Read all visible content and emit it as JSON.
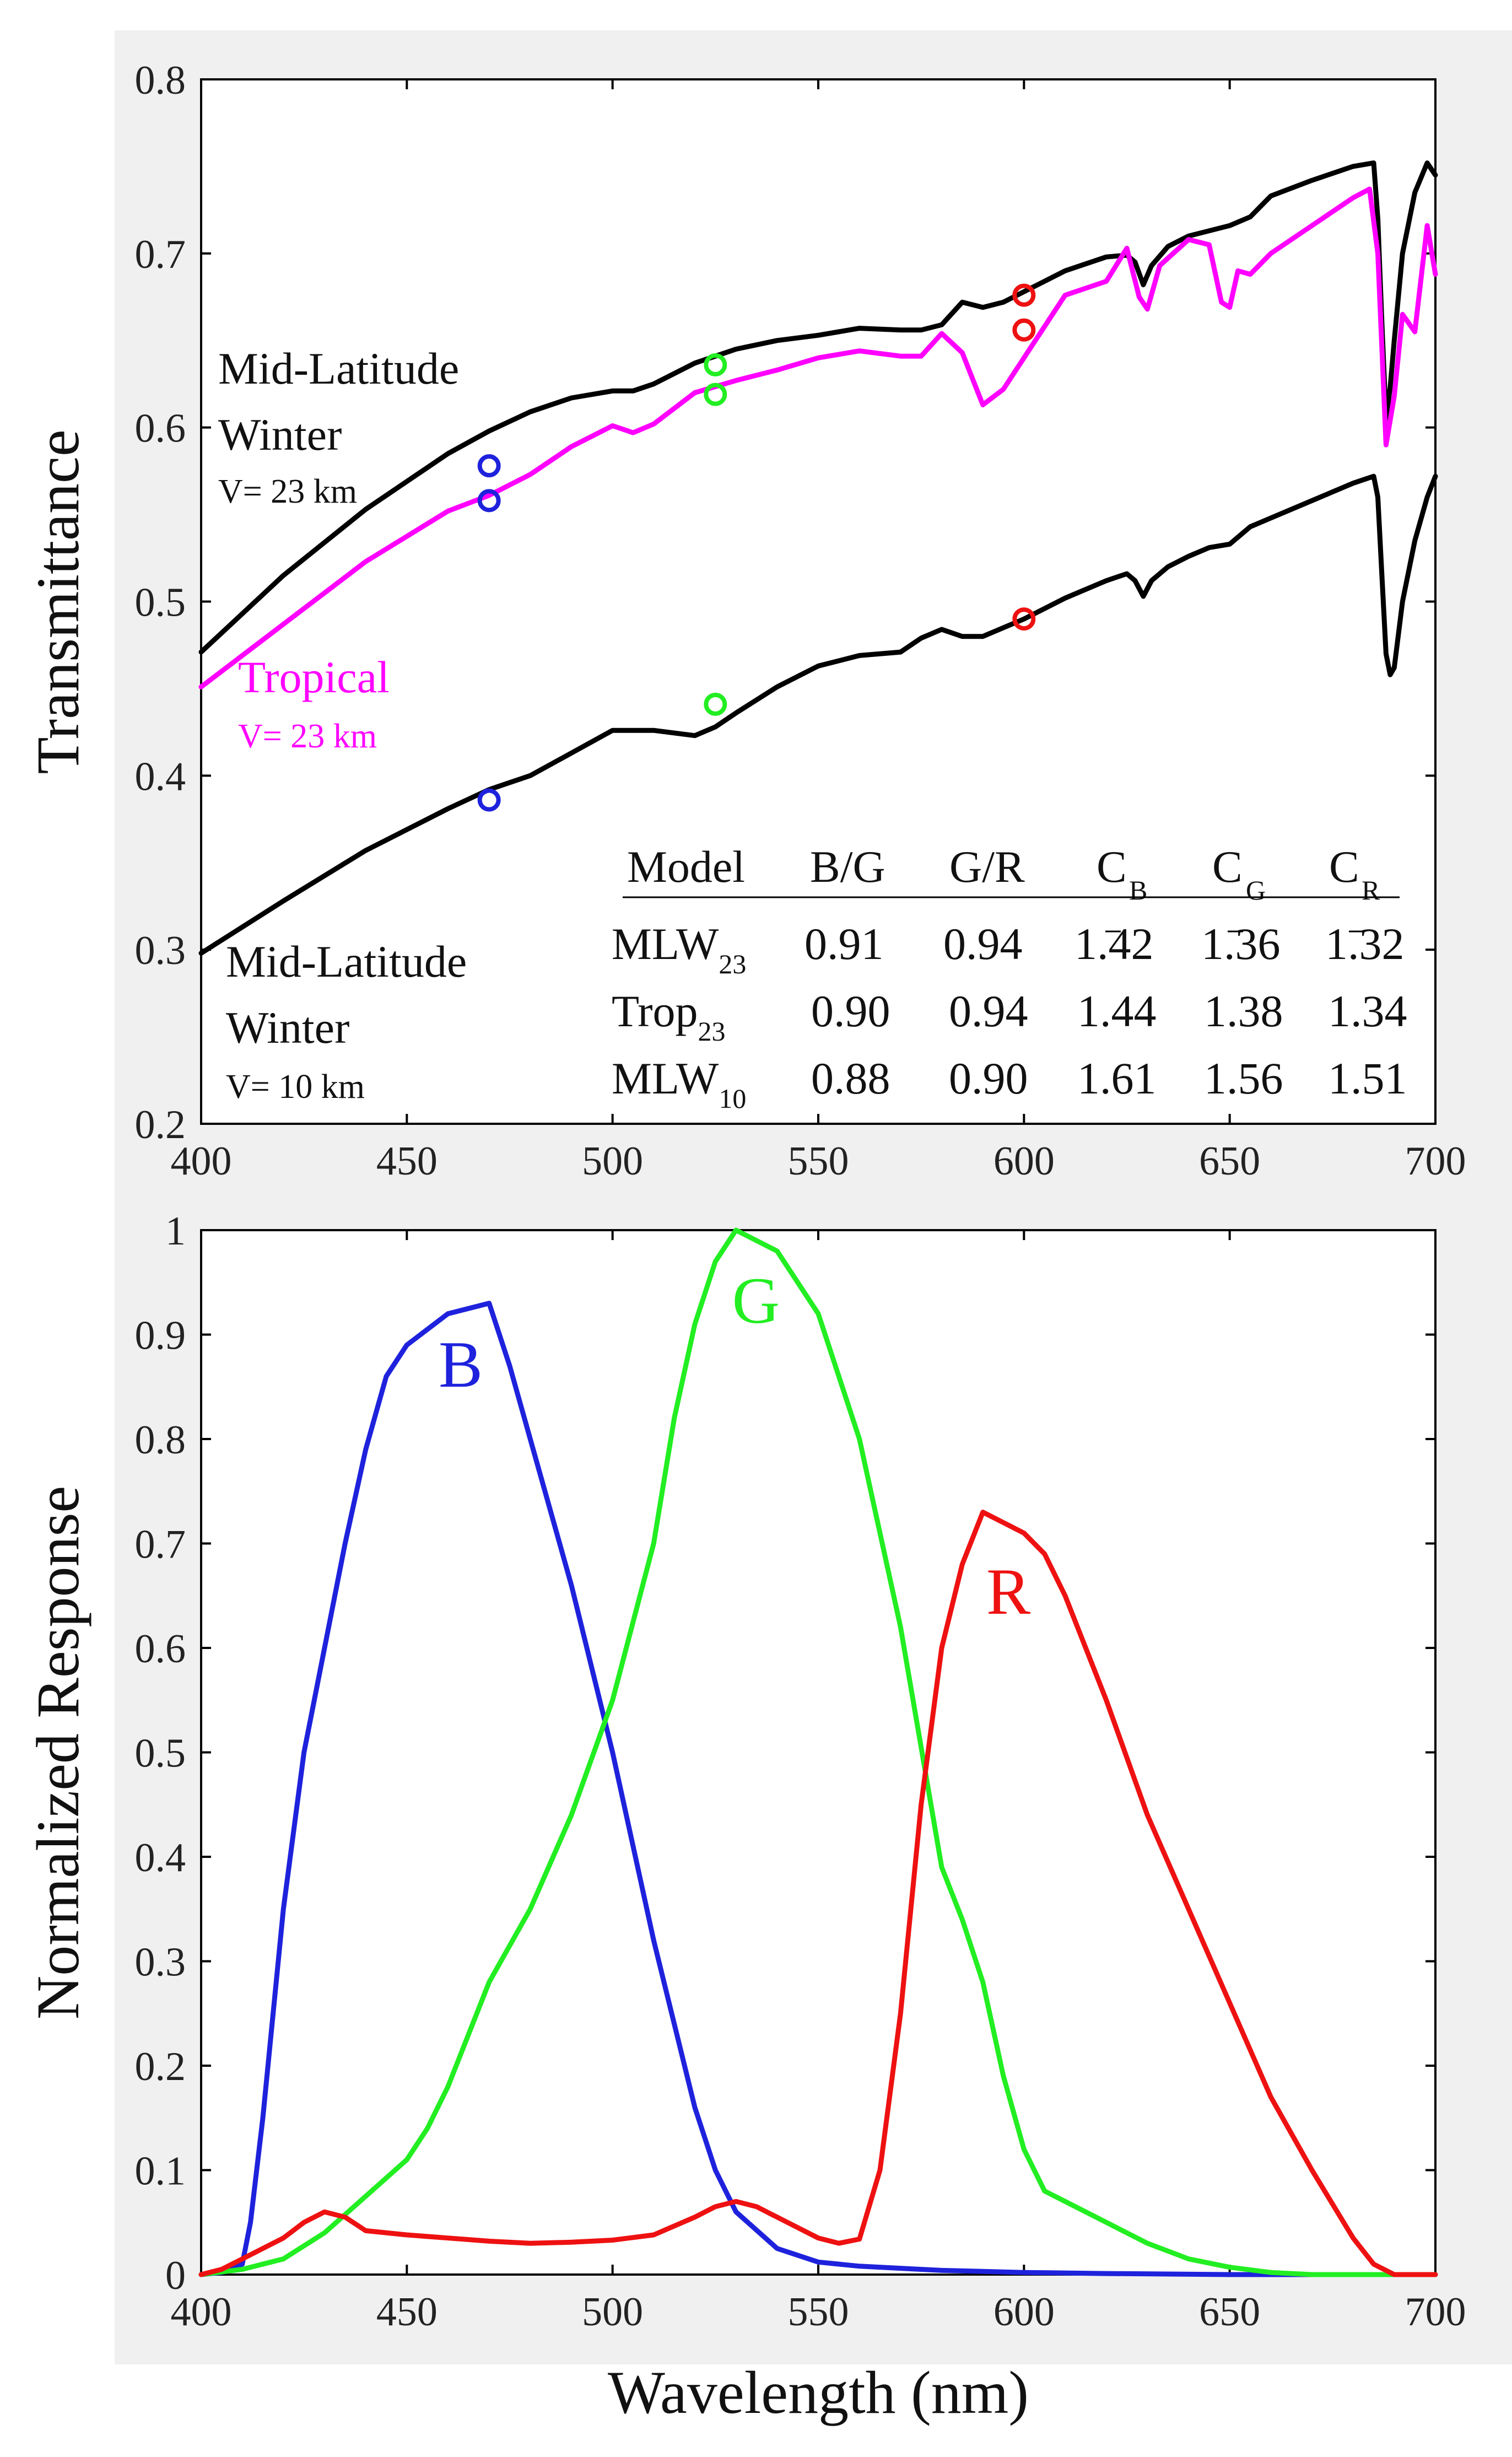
{
  "colors": {
    "black": "#000000",
    "magenta": "#ff00ff",
    "blue": "#1e22dc",
    "green": "#22ee22",
    "red": "#ee1111",
    "panel_bg": "#f0f0f0"
  },
  "chart_data": [
    {
      "type": "line",
      "ylabel": "Transmittance",
      "xlabel": "",
      "xlim": [
        400,
        700
      ],
      "ylim": [
        0.2,
        0.8
      ],
      "xticks": [
        400,
        450,
        500,
        550,
        600,
        650,
        700
      ],
      "xtick_labels": [
        "400",
        "450",
        "500",
        "550",
        "600",
        "650",
        "700"
      ],
      "yticks": [
        0.2,
        0.3,
        0.4,
        0.5,
        0.6,
        0.7,
        0.8
      ],
      "ytick_labels": [
        "0.2",
        "0.3",
        "0.4",
        "0.5",
        "0.6",
        "0.7",
        "0.8"
      ],
      "series": [
        {
          "name": "Mid-Latitude Winter V= 23 km",
          "color": "black",
          "x": [
            400,
            420,
            440,
            460,
            470,
            480,
            490,
            500,
            505,
            510,
            520,
            525,
            530,
            540,
            550,
            560,
            570,
            575,
            580,
            585,
            590,
            595,
            600,
            610,
            620,
            625,
            627,
            629,
            631,
            635,
            640,
            645,
            650,
            655,
            660,
            670,
            680,
            685,
            686,
            687,
            688,
            689,
            690,
            692,
            695,
            698,
            700
          ],
          "y": [
            0.471,
            0.515,
            0.553,
            0.585,
            0.598,
            0.609,
            0.617,
            0.621,
            0.621,
            0.625,
            0.637,
            0.641,
            0.645,
            0.65,
            0.653,
            0.657,
            0.656,
            0.656,
            0.659,
            0.672,
            0.669,
            0.672,
            0.678,
            0.69,
            0.698,
            0.699,
            0.695,
            0.682,
            0.693,
            0.704,
            0.71,
            0.713,
            0.716,
            0.721,
            0.733,
            0.742,
            0.75,
            0.752,
            0.72,
            0.66,
            0.605,
            0.623,
            0.65,
            0.7,
            0.735,
            0.752,
            0.745
          ]
        },
        {
          "name": "Tropical V= 23 km",
          "color": "magenta",
          "x": [
            400,
            420,
            440,
            460,
            470,
            480,
            490,
            500,
            505,
            510,
            520,
            530,
            540,
            550,
            560,
            570,
            575,
            580,
            585,
            590,
            595,
            600,
            610,
            620,
            625,
            628,
            630,
            633,
            640,
            645,
            648,
            650,
            652,
            655,
            660,
            670,
            680,
            684,
            686,
            688,
            690,
            692,
            695,
            698,
            700
          ],
          "y": [
            0.451,
            0.487,
            0.523,
            0.552,
            0.561,
            0.573,
            0.589,
            0.601,
            0.597,
            0.602,
            0.62,
            0.627,
            0.633,
            0.64,
            0.644,
            0.641,
            0.641,
            0.654,
            0.643,
            0.613,
            0.622,
            0.64,
            0.676,
            0.684,
            0.703,
            0.675,
            0.668,
            0.693,
            0.708,
            0.705,
            0.672,
            0.669,
            0.69,
            0.688,
            0.7,
            0.716,
            0.732,
            0.737,
            0.7,
            0.59,
            0.618,
            0.665,
            0.655,
            0.716,
            0.688
          ]
        },
        {
          "name": "Mid-Latitude Winter V= 10 km",
          "color": "black",
          "x": [
            400,
            420,
            440,
            460,
            470,
            480,
            490,
            500,
            505,
            510,
            520,
            525,
            530,
            540,
            550,
            560,
            570,
            575,
            580,
            585,
            590,
            600,
            610,
            620,
            625,
            627,
            629,
            631,
            635,
            640,
            645,
            650,
            655,
            660,
            670,
            680,
            685,
            686,
            687,
            688,
            689,
            690,
            692,
            695,
            698,
            700
          ],
          "y": [
            0.298,
            0.328,
            0.357,
            0.381,
            0.392,
            0.4,
            0.413,
            0.426,
            0.426,
            0.426,
            0.423,
            0.428,
            0.436,
            0.451,
            0.463,
            0.469,
            0.471,
            0.479,
            0.484,
            0.48,
            0.48,
            0.49,
            0.502,
            0.512,
            0.516,
            0.512,
            0.503,
            0.512,
            0.52,
            0.526,
            0.531,
            0.533,
            0.543,
            0.548,
            0.558,
            0.568,
            0.572,
            0.56,
            0.515,
            0.47,
            0.458,
            0.462,
            0.5,
            0.535,
            0.56,
            0.572
          ]
        }
      ],
      "markers": [
        {
          "color": "blue",
          "x": 470,
          "y": 0.578
        },
        {
          "color": "blue",
          "x": 470,
          "y": 0.558
        },
        {
          "color": "green",
          "x": 525,
          "y": 0.636
        },
        {
          "color": "green",
          "x": 525,
          "y": 0.619
        },
        {
          "color": "red",
          "x": 600,
          "y": 0.676
        },
        {
          "color": "red",
          "x": 600,
          "y": 0.656
        },
        {
          "color": "blue",
          "x": 470,
          "y": 0.386
        },
        {
          "color": "green",
          "x": 525,
          "y": 0.441
        },
        {
          "color": "red",
          "x": 600,
          "y": 0.49
        }
      ],
      "annotations": {
        "mlw23_line1": "Mid-Latitude",
        "mlw23_line2": "Winter",
        "mlw23_vis": "V= 23 km",
        "trop_line1": "Tropical",
        "trop_vis": "V= 23 km",
        "mlw10_line1": "Mid-Latitude",
        "mlw10_line2": "Winter",
        "mlw10_vis": "V= 10 km"
      },
      "table": {
        "headers": [
          "Model",
          "B/G",
          "G/R",
          "C",
          "C",
          "C"
        ],
        "header_subscripts": [
          "",
          "",
          "",
          "B",
          "G",
          "R"
        ],
        "rows": [
          {
            "model": "MLW",
            "sub": "23",
            "values": [
              "0.91",
              "0.94",
              "1.42",
              "1.36",
              "1.32"
            ]
          },
          {
            "model": "Trop",
            "sub": "23",
            "values": [
              "0.90",
              "0.94",
              "1.44",
              "1.38",
              "1.34"
            ]
          },
          {
            "model": "MLW",
            "sub": "10",
            "values": [
              "0.88",
              "0.90",
              "1.61",
              "1.56",
              "1.51"
            ]
          }
        ]
      }
    },
    {
      "type": "line",
      "ylabel": "Normalized Response",
      "xlabel": "Wavelength (nm)",
      "xlim": [
        400,
        700
      ],
      "ylim": [
        0,
        1
      ],
      "xticks": [
        400,
        450,
        500,
        550,
        600,
        650,
        700
      ],
      "xtick_labels": [
        "400",
        "450",
        "500",
        "550",
        "600",
        "650",
        "700"
      ],
      "yticks": [
        0,
        0.1,
        0.2,
        0.3,
        0.4,
        0.5,
        0.6,
        0.7,
        0.8,
        0.9,
        1
      ],
      "ytick_labels": [
        "0",
        "0.1",
        "0.2",
        "0.3",
        "0.4",
        "0.5",
        "0.6",
        "0.7",
        "0.8",
        "0.9",
        "1"
      ],
      "series": [
        {
          "name": "B",
          "color": "blue",
          "x": [
            400,
            405,
            410,
            412,
            415,
            420,
            425,
            430,
            435,
            440,
            445,
            450,
            460,
            470,
            475,
            480,
            490,
            500,
            510,
            520,
            525,
            530,
            540,
            550,
            560,
            580,
            600,
            620,
            650,
            700
          ],
          "y": [
            0,
            0.002,
            0.01,
            0.05,
            0.15,
            0.35,
            0.5,
            0.6,
            0.7,
            0.79,
            0.86,
            0.89,
            0.92,
            0.93,
            0.87,
            0.8,
            0.66,
            0.5,
            0.32,
            0.16,
            0.1,
            0.06,
            0.025,
            0.012,
            0.008,
            0.004,
            0.002,
            0.001,
            0,
            0
          ]
        },
        {
          "name": "G",
          "color": "green",
          "x": [
            400,
            410,
            420,
            430,
            440,
            450,
            455,
            460,
            465,
            470,
            480,
            490,
            500,
            510,
            515,
            520,
            525,
            530,
            540,
            550,
            560,
            570,
            580,
            585,
            590,
            595,
            600,
            605,
            610,
            620,
            630,
            640,
            650,
            660,
            670,
            700
          ],
          "y": [
            0,
            0.005,
            0.015,
            0.04,
            0.075,
            0.11,
            0.14,
            0.18,
            0.23,
            0.28,
            0.35,
            0.44,
            0.55,
            0.7,
            0.82,
            0.91,
            0.97,
            1.0,
            0.98,
            0.92,
            0.8,
            0.62,
            0.39,
            0.34,
            0.28,
            0.19,
            0.12,
            0.08,
            0.07,
            0.05,
            0.03,
            0.015,
            0.007,
            0.002,
            0,
            0
          ]
        },
        {
          "name": "R",
          "color": "red",
          "x": [
            400,
            405,
            410,
            415,
            420,
            425,
            430,
            435,
            440,
            450,
            460,
            470,
            480,
            490,
            500,
            510,
            520,
            525,
            530,
            535,
            540,
            550,
            555,
            560,
            565,
            570,
            575,
            580,
            585,
            590,
            595,
            600,
            605,
            610,
            620,
            630,
            640,
            650,
            660,
            670,
            680,
            685,
            690,
            700
          ],
          "y": [
            0,
            0.005,
            0.015,
            0.025,
            0.035,
            0.05,
            0.06,
            0.055,
            0.042,
            0.038,
            0.035,
            0.032,
            0.03,
            0.031,
            0.033,
            0.038,
            0.055,
            0.065,
            0.07,
            0.065,
            0.055,
            0.035,
            0.03,
            0.034,
            0.1,
            0.25,
            0.45,
            0.6,
            0.68,
            0.73,
            0.72,
            0.71,
            0.69,
            0.65,
            0.55,
            0.44,
            0.35,
            0.26,
            0.17,
            0.1,
            0.035,
            0.01,
            0,
            0
          ]
        }
      ],
      "labels": {
        "B": "B",
        "G": "G",
        "R": "R"
      }
    }
  ]
}
